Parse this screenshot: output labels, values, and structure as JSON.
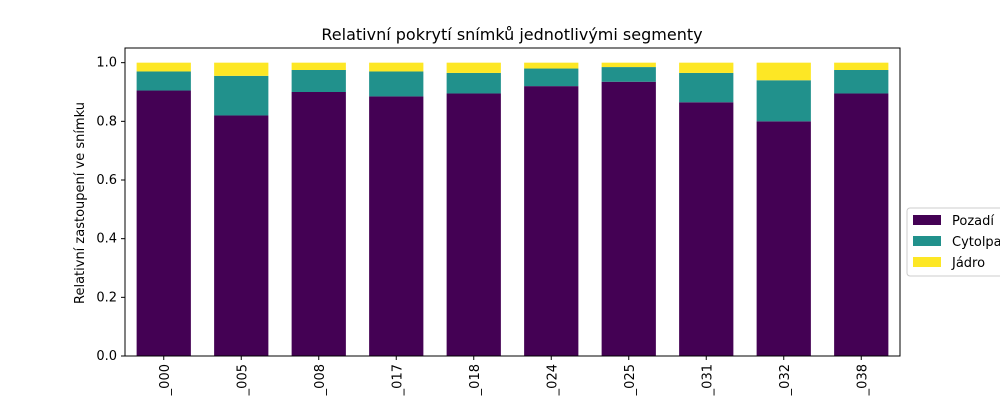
{
  "chart_data": {
    "type": "bar",
    "stacked": true,
    "title": "Relativní pokrytí snímků jednotlivými segmenty",
    "xlabel": "",
    "ylabel": "Relativní zastoupení ve snímku",
    "ylim": [
      0,
      1.05
    ],
    "yticks": [
      0.0,
      0.2,
      0.4,
      0.6,
      0.8,
      1.0
    ],
    "ytick_labels": [
      "0.0",
      "0.2",
      "0.4",
      "0.6",
      "0.8",
      "1.0"
    ],
    "categories": [
      "_000",
      "_005",
      "_008",
      "_017",
      "_018",
      "_024",
      "_025",
      "_031",
      "_032",
      "_038"
    ],
    "series": [
      {
        "name": "Pozadí",
        "color": "#440154",
        "values": [
          0.905,
          0.82,
          0.9,
          0.885,
          0.895,
          0.92,
          0.935,
          0.865,
          0.8,
          0.895
        ]
      },
      {
        "name": "Cytolpa",
        "color": "#21918c",
        "values": [
          0.065,
          0.135,
          0.075,
          0.085,
          0.07,
          0.06,
          0.05,
          0.1,
          0.14,
          0.08
        ]
      },
      {
        "name": "Jádro",
        "color": "#fde725",
        "values": [
          0.03,
          0.045,
          0.025,
          0.03,
          0.035,
          0.02,
          0.015,
          0.035,
          0.06,
          0.025
        ]
      }
    ],
    "grid": false,
    "legend_position": "right"
  }
}
